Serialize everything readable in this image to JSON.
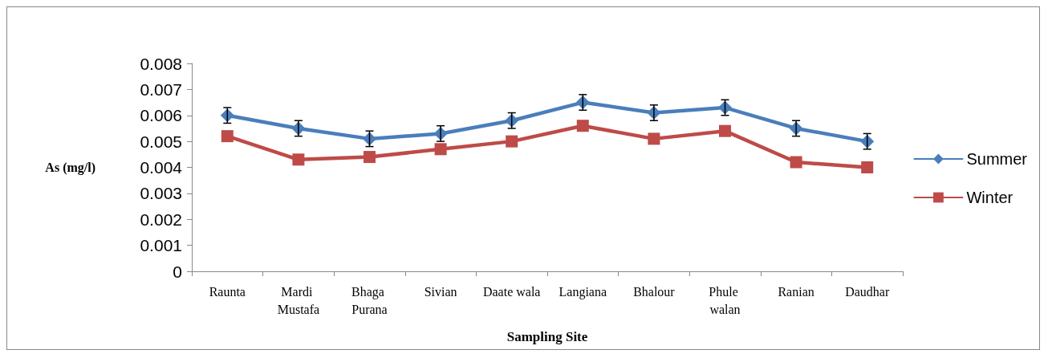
{
  "chart_data": {
    "type": "line",
    "xlabel": "Sampling Site",
    "ylabel": "As (mg/l)",
    "categories": [
      "Raunta",
      "Mardi Mustafa",
      "Bhaga Purana",
      "Sivian",
      "Daate wala",
      "Langiana",
      "Bhalour",
      "Phule walan",
      "Ranian",
      "Daudhar"
    ],
    "series": [
      {
        "name": "Summer",
        "color": "#4a7ebb",
        "marker": "diamond",
        "values": [
          0.006,
          0.0055,
          0.0051,
          0.0053,
          0.0058,
          0.0065,
          0.0061,
          0.0063,
          0.0055,
          0.005
        ],
        "errors": [
          0.0003,
          0.0003,
          0.0003,
          0.0003,
          0.0003,
          0.0003,
          0.0003,
          0.0003,
          0.0003,
          0.0003
        ]
      },
      {
        "name": "Winter",
        "color": "#be4b48",
        "marker": "square",
        "values": [
          0.0052,
          0.0043,
          0.0044,
          0.0047,
          0.005,
          0.0056,
          0.0051,
          0.0054,
          0.0042,
          0.004
        ]
      }
    ],
    "ylim": [
      0,
      0.008
    ],
    "yticks": [
      0,
      0.001,
      0.002,
      0.003,
      0.004,
      0.005,
      0.006,
      0.007,
      0.008
    ],
    "grid": false,
    "legend": "right",
    "line_style": "solid"
  }
}
